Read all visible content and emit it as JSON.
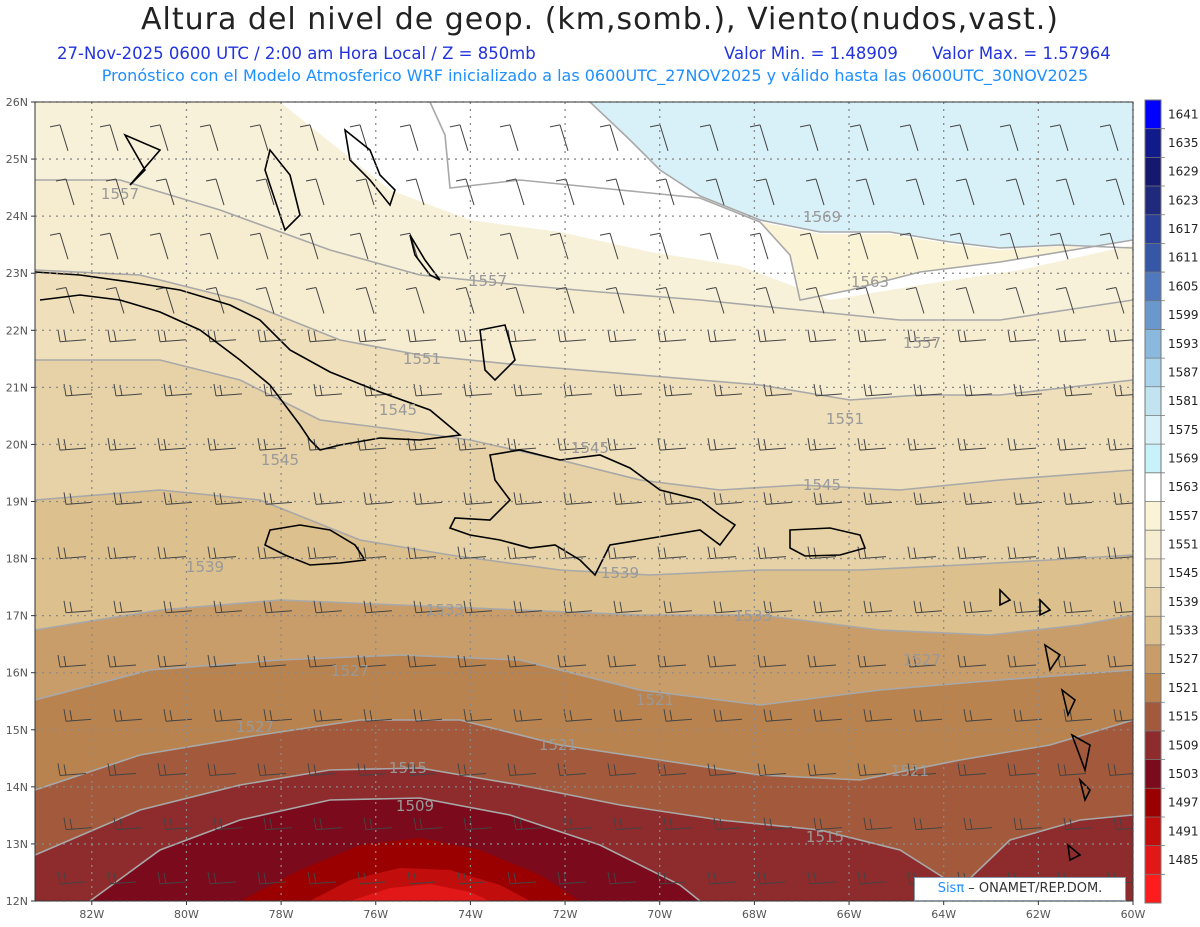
{
  "header": {
    "title": "Altura del nivel de geop. (km,somb.), Viento(nudos,vast.)",
    "date_time": "27-Nov-2025  0600 UTC / 2:00 am Hora Local / Z = 850mb",
    "min_value": "Valor Min. = 1.48909",
    "max_value": "Valor Max. = 1.57964",
    "model_info": "Pronóstico con el Modelo Atmosferico WRF inicializado a las 0600UTC_27NOV2025 y válido hasta las  0600UTC_30NOV2025"
  },
  "axes": {
    "lat_labels": [
      "26N",
      "25N",
      "24N",
      "23N",
      "22N",
      "21N",
      "20N",
      "19N",
      "18N",
      "17N",
      "16N",
      "15N",
      "14N",
      "13N",
      "12N"
    ],
    "lon_labels": [
      "82W",
      "80W",
      "78W",
      "76W",
      "74W",
      "72W",
      "70W",
      "68W",
      "66W",
      "64W",
      "62W",
      "60W"
    ],
    "lat_range": [
      12,
      26
    ],
    "lon_range": [
      -83.2,
      -60
    ]
  },
  "colorbar": {
    "levels": [
      "1641",
      "1635",
      "1629",
      "1623",
      "1617",
      "1611",
      "1605",
      "1599",
      "1593",
      "1587",
      "1581",
      "1575",
      "1569",
      "1563",
      "1557",
      "1551",
      "1545",
      "1539",
      "1533",
      "1527",
      "1521",
      "1515",
      "1509",
      "1503",
      "1497",
      "1491",
      "1485"
    ],
    "colors": [
      "#0000ff",
      "#101a8a",
      "#15186e",
      "#1f2a7c",
      "#2a3f97",
      "#3656a6",
      "#4f79bc",
      "#6a98cc",
      "#8ab9dd",
      "#a9d3ea",
      "#c2e4f1",
      "#d8f1f8",
      "#c8f2fa",
      "#ffffff",
      "#faf3d6",
      "#f6ecd0",
      "#efe0bb",
      "#e6d2a6",
      "#dcc08d",
      "#c89d6a",
      "#b9834f",
      "#a35a3c",
      "#8e2b2d",
      "#7a0a1c",
      "#9b0000",
      "#c20d0d",
      "#e21818",
      "#ff1c1c"
    ]
  },
  "contour_labels": [
    "1557",
    "1569",
    "1563",
    "1557",
    "1557",
    "1551",
    "1545",
    "1545",
    "1551",
    "1545",
    "1545",
    "1539",
    "1539",
    "1533",
    "1533",
    "1527",
    "1527",
    "1521",
    "1527",
    "1521",
    "1521",
    "1515",
    "1509",
    "1515"
  ],
  "credit": {
    "brand": "Sisπ",
    "text": " – ONAMET/REP.DOM."
  }
}
